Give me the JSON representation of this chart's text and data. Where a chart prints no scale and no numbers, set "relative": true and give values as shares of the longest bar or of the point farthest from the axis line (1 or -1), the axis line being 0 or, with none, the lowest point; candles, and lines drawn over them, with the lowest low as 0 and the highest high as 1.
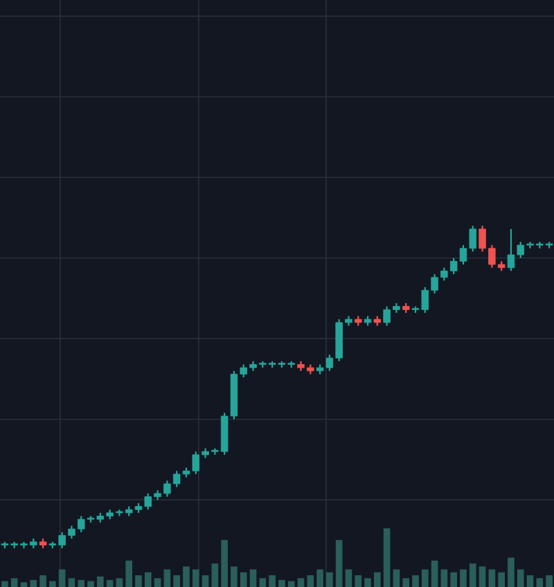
{
  "chart_data": [
    {
      "type": "candlestick",
      "relative": true,
      "grid": true,
      "categories": [
        null,
        null,
        null,
        null,
        null,
        null,
        null,
        null,
        null,
        null,
        null,
        null,
        null,
        null,
        null,
        null,
        null,
        null,
        null,
        null,
        null,
        null,
        null,
        null,
        null,
        null,
        null,
        null,
        null,
        null,
        null,
        null,
        null,
        null,
        null,
        null,
        null,
        null,
        null,
        null,
        null,
        null,
        null,
        null,
        null,
        null,
        null,
        null,
        null,
        null,
        null,
        null,
        null,
        null,
        null,
        null,
        null,
        null
      ],
      "ohlc": [
        [
          0.01,
          0.02,
          0.0,
          0.01
        ],
        [
          0.01,
          0.02,
          0.0,
          0.01
        ],
        [
          0.01,
          0.02,
          0.0,
          0.01
        ],
        [
          0.01,
          0.03,
          0.0,
          0.02
        ],
        [
          0.02,
          0.03,
          0.0,
          0.01
        ],
        [
          0.01,
          0.02,
          0.0,
          0.01
        ],
        [
          0.01,
          0.05,
          0.0,
          0.04
        ],
        [
          0.04,
          0.07,
          0.03,
          0.06
        ],
        [
          0.06,
          0.1,
          0.05,
          0.09
        ],
        [
          0.09,
          0.1,
          0.08,
          0.09
        ],
        [
          0.09,
          0.11,
          0.08,
          0.1
        ],
        [
          0.1,
          0.12,
          0.09,
          0.11
        ],
        [
          0.11,
          0.12,
          0.1,
          0.11
        ],
        [
          0.11,
          0.13,
          0.1,
          0.12
        ],
        [
          0.12,
          0.14,
          0.11,
          0.13
        ],
        [
          0.13,
          0.17,
          0.12,
          0.16
        ],
        [
          0.16,
          0.18,
          0.15,
          0.17
        ],
        [
          0.17,
          0.21,
          0.16,
          0.2
        ],
        [
          0.2,
          0.24,
          0.19,
          0.23
        ],
        [
          0.23,
          0.25,
          0.22,
          0.24
        ],
        [
          0.24,
          0.3,
          0.23,
          0.29
        ],
        [
          0.29,
          0.31,
          0.28,
          0.3
        ],
        [
          0.3,
          0.31,
          0.29,
          0.3
        ],
        [
          0.3,
          0.42,
          0.29,
          0.41
        ],
        [
          0.41,
          0.55,
          0.4,
          0.54
        ],
        [
          0.54,
          0.57,
          0.53,
          0.56
        ],
        [
          0.56,
          0.58,
          0.55,
          0.57
        ],
        [
          0.57,
          0.58,
          0.56,
          0.57
        ],
        [
          0.57,
          0.58,
          0.56,
          0.57
        ],
        [
          0.57,
          0.58,
          0.56,
          0.57
        ],
        [
          0.57,
          0.58,
          0.56,
          0.57
        ],
        [
          0.57,
          0.58,
          0.55,
          0.56
        ],
        [
          0.56,
          0.57,
          0.54,
          0.55
        ],
        [
          0.55,
          0.57,
          0.54,
          0.56
        ],
        [
          0.56,
          0.6,
          0.55,
          0.59
        ],
        [
          0.59,
          0.71,
          0.58,
          0.7
        ],
        [
          0.7,
          0.72,
          0.69,
          0.71
        ],
        [
          0.71,
          0.72,
          0.69,
          0.7
        ],
        [
          0.7,
          0.72,
          0.69,
          0.71
        ],
        [
          0.71,
          0.72,
          0.69,
          0.7
        ],
        [
          0.7,
          0.75,
          0.69,
          0.74
        ],
        [
          0.74,
          0.76,
          0.73,
          0.75
        ],
        [
          0.75,
          0.76,
          0.73,
          0.74
        ],
        [
          0.74,
          0.75,
          0.73,
          0.74
        ],
        [
          0.74,
          0.81,
          0.73,
          0.8
        ],
        [
          0.8,
          0.85,
          0.79,
          0.84
        ],
        [
          0.84,
          0.87,
          0.83,
          0.86
        ],
        [
          0.86,
          0.9,
          0.85,
          0.89
        ],
        [
          0.89,
          0.94,
          0.88,
          0.93
        ],
        [
          0.93,
          1.0,
          0.92,
          0.99
        ],
        [
          0.99,
          1.0,
          0.92,
          0.93
        ],
        [
          0.93,
          0.94,
          0.87,
          0.88
        ],
        [
          0.88,
          0.89,
          0.86,
          0.87
        ],
        [
          0.87,
          0.99,
          0.86,
          0.91
        ],
        [
          0.91,
          0.95,
          0.9,
          0.94
        ],
        [
          0.94,
          0.95,
          0.93,
          0.94
        ],
        [
          0.94,
          0.95,
          0.93,
          0.94
        ],
        [
          0.94,
          0.95,
          0.93,
          0.94
        ]
      ],
      "colors": [
        "#26a69a",
        "#26a69a",
        "#26a69a",
        "#26a69a",
        "#ef5350",
        "#26a69a",
        "#26a69a",
        "#26a69a",
        "#26a69a",
        "#26a69a",
        "#26a69a",
        "#26a69a",
        "#26a69a",
        "#26a69a",
        "#26a69a",
        "#26a69a",
        "#26a69a",
        "#26a69a",
        "#26a69a",
        "#26a69a",
        "#26a69a",
        "#26a69a",
        "#26a69a",
        "#26a69a",
        "#26a69a",
        "#26a69a",
        "#26a69a",
        "#26a69a",
        "#26a69a",
        "#26a69a",
        "#26a69a",
        "#ef5350",
        "#ef5350",
        "#26a69a",
        "#26a69a",
        "#26a69a",
        "#26a69a",
        "#ef5350",
        "#26a69a",
        "#ef5350",
        "#26a69a",
        "#26a69a",
        "#ef5350",
        "#26a69a",
        "#26a69a",
        "#26a69a",
        "#26a69a",
        "#26a69a",
        "#26a69a",
        "#26a69a",
        "#ef5350",
        "#ef5350",
        "#ef5350",
        "#26a69a",
        "#26a69a",
        "#26a69a",
        "#26a69a",
        "#26a69a"
      ]
    },
    {
      "type": "bar",
      "relative": true,
      "categories": [
        null,
        null,
        null,
        null,
        null,
        null,
        null,
        null,
        null,
        null,
        null,
        null,
        null,
        null,
        null,
        null,
        null,
        null,
        null,
        null,
        null,
        null,
        null,
        null,
        null,
        null,
        null,
        null,
        null,
        null,
        null,
        null,
        null,
        null,
        null,
        null,
        null,
        null,
        null,
        null,
        null,
        null,
        null,
        null,
        null,
        null,
        null,
        null,
        null,
        null,
        null,
        null,
        null,
        null,
        null,
        null,
        null,
        null
      ],
      "color": "#2a5f5b",
      "values": [
        0.1,
        0.15,
        0.08,
        0.12,
        0.2,
        0.1,
        0.3,
        0.15,
        0.12,
        0.1,
        0.18,
        0.12,
        0.15,
        0.45,
        0.2,
        0.25,
        0.15,
        0.3,
        0.2,
        0.35,
        0.3,
        0.2,
        0.4,
        0.8,
        0.35,
        0.25,
        0.3,
        0.15,
        0.2,
        0.12,
        0.1,
        0.15,
        0.2,
        0.3,
        0.25,
        0.8,
        0.3,
        0.2,
        0.15,
        0.25,
        1.0,
        0.3,
        0.15,
        0.2,
        0.3,
        0.45,
        0.3,
        0.25,
        0.3,
        0.4,
        0.35,
        0.3,
        0.25,
        0.5,
        0.3,
        0.2,
        0.15,
        0.2
      ]
    }
  ]
}
